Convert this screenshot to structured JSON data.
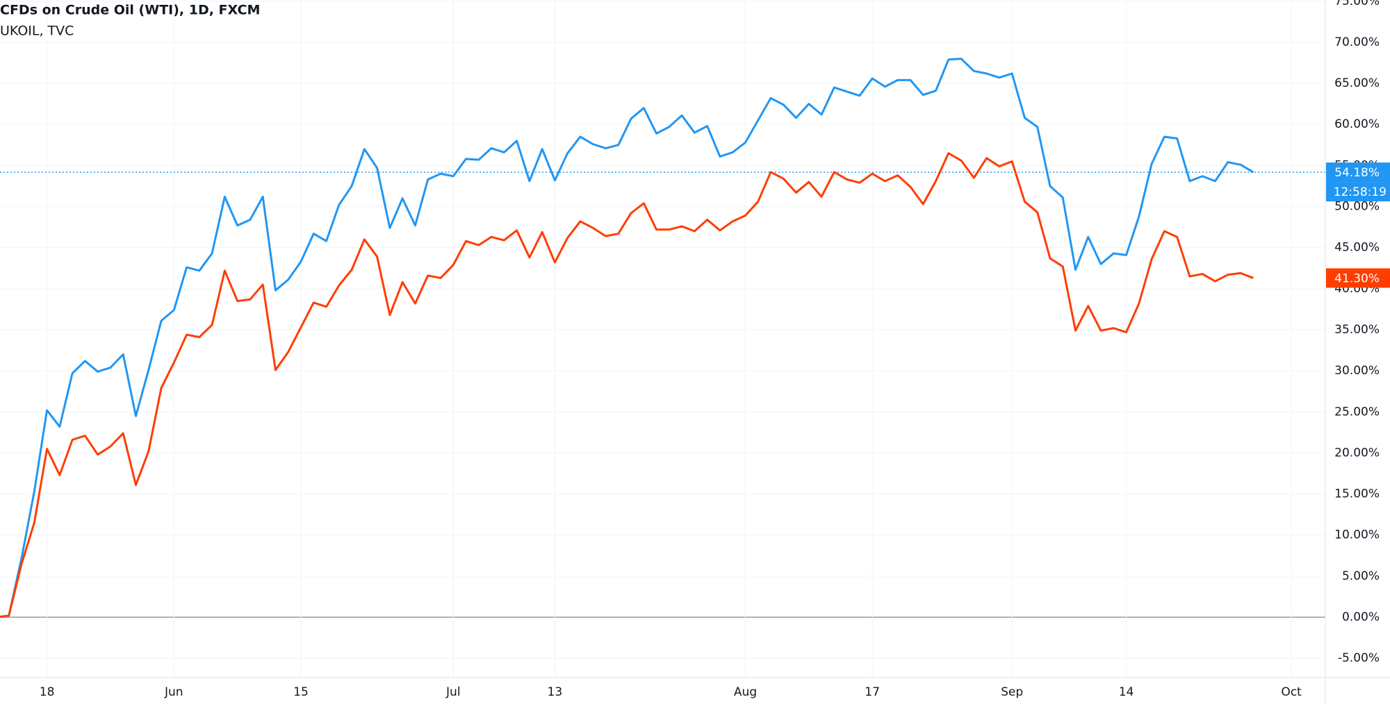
{
  "chart_data": {
    "type": "line",
    "categories": [
      null,
      null,
      null,
      null,
      "18",
      null,
      null,
      null,
      null,
      null,
      null,
      null,
      null,
      null,
      "Jun",
      null,
      null,
      null,
      null,
      null,
      null,
      null,
      null,
      null,
      "15",
      null,
      null,
      null,
      null,
      null,
      null,
      null,
      null,
      null,
      null,
      null,
      "Jul",
      null,
      null,
      null,
      null,
      null,
      null,
      null,
      "13",
      null,
      null,
      null,
      null,
      null,
      null,
      null,
      null,
      null,
      null,
      null,
      null,
      null,
      null,
      "Aug",
      null,
      null,
      null,
      null,
      null,
      null,
      null,
      null,
      null,
      "17",
      null,
      null,
      null,
      null,
      null,
      null,
      null,
      null,
      null,
      null,
      "Sep",
      null,
      null,
      null,
      null,
      null,
      null,
      null,
      null,
      "14",
      null,
      null,
      null,
      null,
      null,
      null,
      null,
      null,
      null,
      null,
      null,
      null,
      "Oct"
    ],
    "series": [
      {
        "name": "CFDs on Crude Oil (WTI), 1D, FXCM",
        "color": "#2196f3",
        "last_label": "54.18%",
        "values": [
          0,
          0.2,
          7.2,
          15.3,
          25.2,
          23.2,
          29.7,
          31.2,
          29.9,
          30.4,
          32.0,
          24.5,
          30.1,
          36.1,
          37.4,
          42.6,
          42.2,
          44.3,
          51.2,
          47.7,
          48.4,
          51.2,
          39.8,
          41.1,
          43.3,
          46.7,
          45.8,
          50.2,
          52.5,
          57.0,
          54.7,
          47.4,
          51.0,
          47.7,
          53.3,
          54.0,
          53.7,
          55.8,
          55.7,
          57.1,
          56.6,
          58.0,
          53.1,
          57.0,
          53.2,
          56.5,
          58.5,
          57.6,
          57.1,
          57.5,
          60.7,
          62.0,
          58.9,
          59.7,
          61.1,
          59.0,
          59.8,
          56.1,
          56.6,
          57.8,
          60.5,
          63.2,
          62.4,
          60.8,
          62.5,
          61.2,
          64.5,
          64.0,
          63.5,
          65.6,
          64.6,
          65.4,
          65.4,
          63.6,
          64.1,
          67.9,
          68.0,
          66.5,
          66.2,
          65.7,
          66.2,
          60.8,
          59.7,
          52.5,
          51.1,
          42.3,
          46.3,
          43.0,
          44.3,
          44.1,
          48.8,
          55.2,
          58.5,
          58.3,
          53.1,
          53.7,
          53.1,
          55.4,
          55.1,
          54.18,
          null,
          null,
          null
        ]
      },
      {
        "name": "UKOIL, TVC",
        "color": "#ff3d00",
        "last_label": "41.30%",
        "values": [
          0,
          0.2,
          6.5,
          11.5,
          20.5,
          17.3,
          21.6,
          22.1,
          19.8,
          20.8,
          22.4,
          16.1,
          20.2,
          27.9,
          31.0,
          34.4,
          34.1,
          35.6,
          42.2,
          38.5,
          38.7,
          40.5,
          30.1,
          32.3,
          35.3,
          38.3,
          37.8,
          40.4,
          42.3,
          46.0,
          43.9,
          36.8,
          40.8,
          38.2,
          41.6,
          41.3,
          42.9,
          45.8,
          45.3,
          46.3,
          45.9,
          47.1,
          43.8,
          46.9,
          43.2,
          46.2,
          48.2,
          47.4,
          46.4,
          46.7,
          49.2,
          50.4,
          47.2,
          47.2,
          47.6,
          47.0,
          48.4,
          47.1,
          48.2,
          48.9,
          50.6,
          54.2,
          53.4,
          51.7,
          53.0,
          51.2,
          54.2,
          53.3,
          52.9,
          54.0,
          53.1,
          53.8,
          52.4,
          50.3,
          53.1,
          56.5,
          55.6,
          53.5,
          55.9,
          54.9,
          55.5,
          50.6,
          49.3,
          43.7,
          42.7,
          34.9,
          37.9,
          34.9,
          35.2,
          34.7,
          38.2,
          43.6,
          47.0,
          46.3,
          41.5,
          41.8,
          40.9,
          41.7,
          41.9,
          41.3,
          null,
          null,
          null
        ]
      }
    ],
    "countdown": "12:58:19",
    "ylim": [
      -7.35,
      75.15
    ],
    "yticks": [
      {
        "value": -5,
        "label": "-5.00%"
      },
      {
        "value": 0,
        "label": "0.00%"
      },
      {
        "value": 5,
        "label": "5.00%"
      },
      {
        "value": 10,
        "label": "10.00%"
      },
      {
        "value": 15,
        "label": "15.00%"
      },
      {
        "value": 20,
        "label": "20.00%"
      },
      {
        "value": 25,
        "label": "25.00%"
      },
      {
        "value": 30,
        "label": "30.00%"
      },
      {
        "value": 35,
        "label": "35.00%"
      },
      {
        "value": 40,
        "label": "40.00%"
      },
      {
        "value": 45,
        "label": "45.00%"
      },
      {
        "value": 50,
        "label": "50.00%"
      },
      {
        "value": 55,
        "label": "55.00%"
      },
      {
        "value": 60,
        "label": "60.00%"
      },
      {
        "value": 65,
        "label": "65.00%"
      },
      {
        "value": 70,
        "label": "70.00%"
      },
      {
        "value": 75,
        "label": "75.00%"
      }
    ],
    "grid": true
  }
}
